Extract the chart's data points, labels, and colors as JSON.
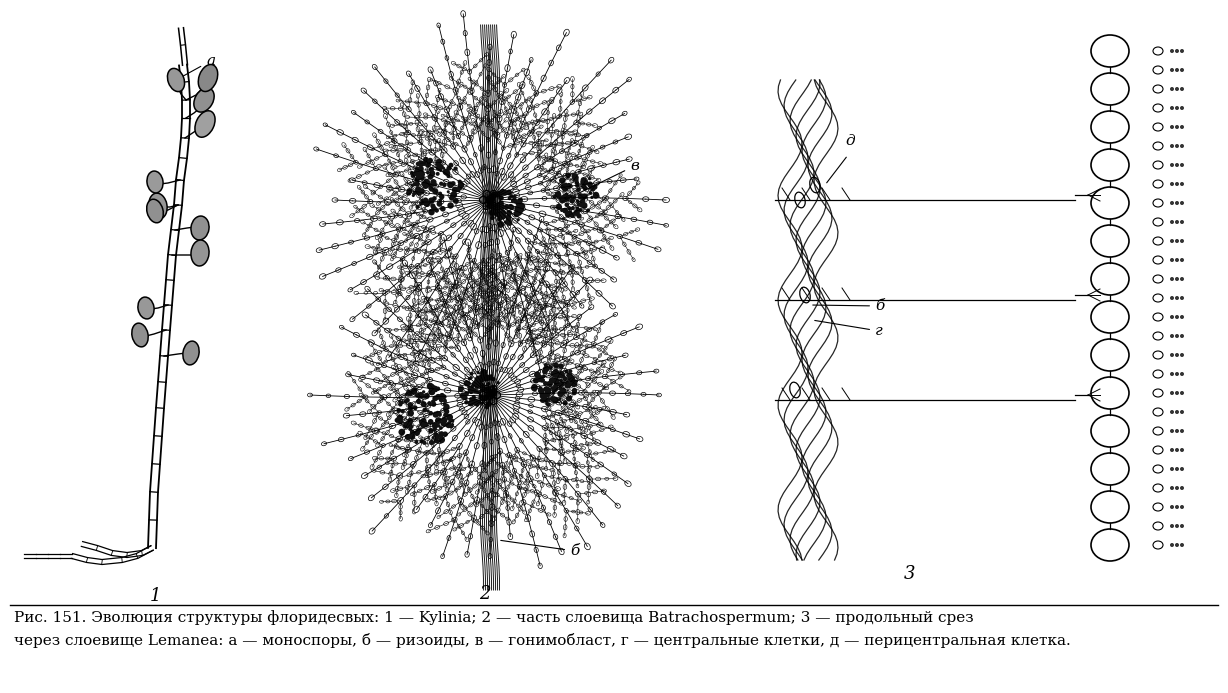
{
  "figure_width": 12.28,
  "figure_height": 6.93,
  "dpi": 100,
  "bg_color": "#ffffff",
  "caption_line1": "Рис. 151. Эволюция структуры флоридесвых: 1 — Kylinia; 2 — часть слоевища Batrachospermum; 3 — продольный срез",
  "caption_line2": "через слоевище Lemanea: а — моноспоры, б — ризоиды, в — гонимобласт, г — центральные клетки, д — перицентральная клетка.",
  "label_1": "1",
  "label_2": "2",
  "label_3": "3",
  "label_a": "а",
  "label_b": "б",
  "label_v": "в",
  "label_g": "г",
  "label_d": "д",
  "caption_fontsize": 11,
  "label_fontsize": 11,
  "line_color": "#000000"
}
